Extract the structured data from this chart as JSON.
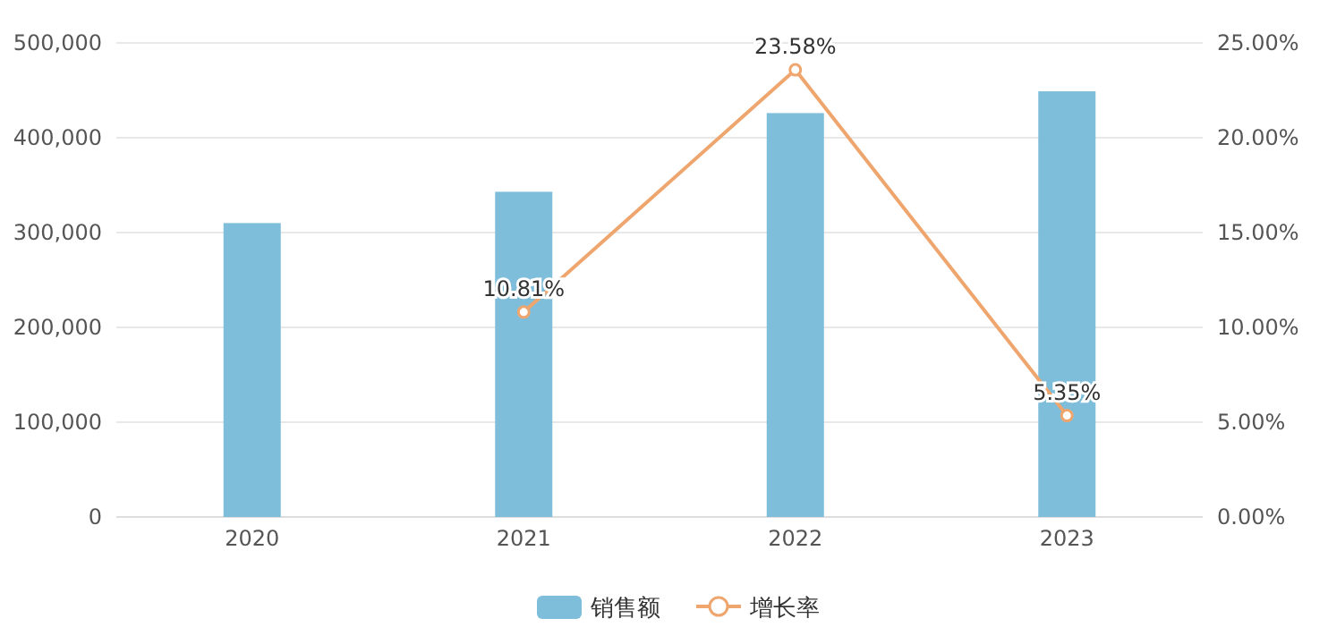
{
  "chart_data": {
    "type": "bar",
    "categories": [
      "2020",
      "2021",
      "2022",
      "2023"
    ],
    "series": [
      {
        "name": "销售额",
        "color": "#7fbedb",
        "values": [
          310000,
          343000,
          426000,
          449000
        ]
      },
      {
        "name": "增长率",
        "type": "line",
        "axis": "y2",
        "color": "#eea66e",
        "marker": "circle",
        "values": [
          null,
          10.81,
          23.58,
          5.35
        ],
        "value_labels": [
          null,
          "10.81%",
          "23.58%",
          "5.35%"
        ]
      }
    ],
    "ylim": [
      0,
      500000
    ],
    "yticks": [
      {
        "value": 0,
        "label": "0"
      },
      {
        "value": 100000,
        "label": "100,000"
      },
      {
        "value": 200000,
        "label": "200,000"
      },
      {
        "value": 300000,
        "label": "300,000"
      },
      {
        "value": 400000,
        "label": "400,000"
      },
      {
        "value": 500000,
        "label": "500,000"
      }
    ],
    "y2lim": [
      0,
      25
    ],
    "y2ticks": [
      {
        "value": 0,
        "label": "0.00%"
      },
      {
        "value": 5,
        "label": "5.00%"
      },
      {
        "value": 10,
        "label": "10.00%"
      },
      {
        "value": 15,
        "label": "15.00%"
      },
      {
        "value": 20,
        "label": "20.00%"
      },
      {
        "value": 25,
        "label": "25.00%"
      }
    ],
    "grid": "y",
    "legend": "bottom"
  }
}
